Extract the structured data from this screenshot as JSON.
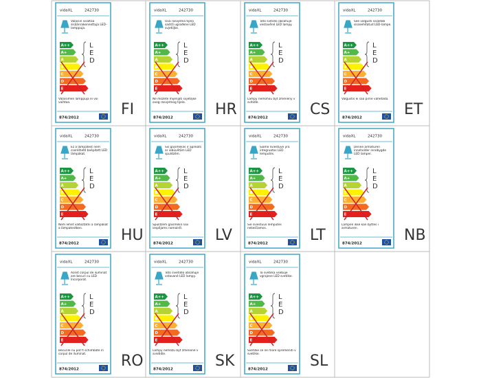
{
  "brand": "vidaXL",
  "model": "242730",
  "regulation": "874/2012",
  "classes": [
    "A++",
    "A+",
    "A",
    "B",
    "C",
    "D",
    "E"
  ],
  "led": [
    "L",
    "E",
    "D"
  ],
  "labels": [
    {
      "lang": "FI",
      "description": "Valaisin sisältää sisäänrakennettuja LED-lamppuja.",
      "note": "Valaisimen lamppuja ei voi vaihtaa."
    },
    {
      "lang": "HR",
      "description": "Ova rasvjetna tijela sadrži ugrađene LED svjetiljke.",
      "note": "Ne možete mijenjati svjetiljke ovog rasvjetnog tijela."
    },
    {
      "lang": "CS",
      "description": "Toto svítidlo obsahuje vestavěné LED lampy.",
      "note": "Lampy nemohou být změněny v svítidle."
    },
    {
      "lang": "ET",
      "description": "See valgusti sisaldab sisseehitatud LED-lampe.",
      "note": "Valgustis ei saa pirne vahetada."
    },
    {
      "lang": "HU",
      "description": "Ez a lámpatest nem cserélhető beépített LED lámpákat.",
      "note": "Nem lehet változtatni a lámpákat a lámpatestben."
    },
    {
      "lang": "LV",
      "description": "Šis gaismeklis ir aprīkots ar iebūvētām LED spuldzēm.",
      "note": "Spuldzēm gaismeklī nav iespējams nomainīt."
    },
    {
      "lang": "LT",
      "description": "Šiame šviestuve yra integruotos LED lemputės.",
      "note": "Šie šviestuvo lemputės nekeičiamos."
    },
    {
      "lang": "NB",
      "description": "Denne armaturen inneholder innebygde LED lamper.",
      "note": "Lampen ikke kan byttes i armaturen."
    },
    {
      "lang": "RO",
      "description": "Acest corpul de iluminat are becuri cu LED încorporat.",
      "note": "Becurile nu pot fi schimbate în corpul de iluminat."
    },
    {
      "lang": "SK",
      "description": "Toto svietidlo obsahuje vstavané LED lampy.",
      "note": "Lampy nemôžu byť zmenené v svietidle."
    },
    {
      "lang": "SL",
      "description": "Ta svetilka vsebuje vgrajene LED svetilke.",
      "note": "Svetilke se ne more spremeniti v svetilke."
    }
  ]
}
